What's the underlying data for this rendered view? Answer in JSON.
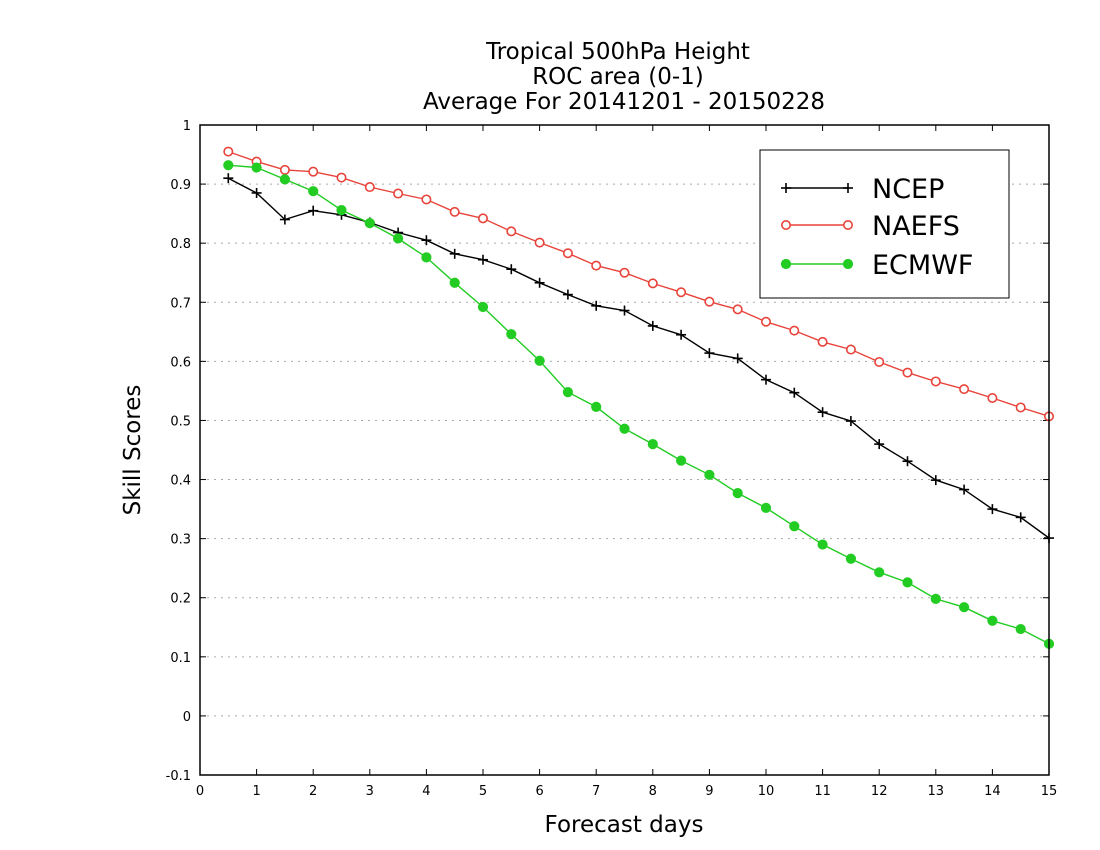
{
  "chart_data": {
    "type": "line",
    "title_lines": [
      "Tropical 500hPa Height",
      "ROC area (0-1)",
      "Average For 20141201 - 20150228"
    ],
    "xlabel": "Forecast days",
    "ylabel": "Skill Scores",
    "xlim": [
      0,
      15
    ],
    "ylim": [
      -0.1,
      1
    ],
    "x_ticks": [
      0,
      1,
      2,
      3,
      4,
      5,
      6,
      7,
      8,
      9,
      10,
      11,
      12,
      13,
      14,
      15
    ],
    "y_ticks": [
      -0.1,
      0,
      0.1,
      0.2,
      0.3,
      0.4,
      0.5,
      0.6,
      0.7,
      0.8,
      0.9,
      1
    ],
    "y_tick_labels": [
      "-0.1",
      "0",
      "0.1",
      "0.2",
      "0.3",
      "0.4",
      "0.5",
      "0.6",
      "0.7",
      "0.8",
      "0.9",
      "1"
    ],
    "grid": "horizontal dotted",
    "legend_position": "top-right",
    "x": [
      0.5,
      1,
      1.5,
      2,
      2.5,
      3,
      3.5,
      4,
      4.5,
      5,
      5.5,
      6,
      6.5,
      7,
      7.5,
      8,
      8.5,
      9,
      9.5,
      10,
      10.5,
      11,
      11.5,
      12,
      12.5,
      13,
      13.5,
      14,
      14.5,
      15
    ],
    "series": [
      {
        "name": "NCEP",
        "color": "#000000",
        "marker": "plus",
        "values": [
          0.91,
          0.885,
          0.84,
          0.855,
          0.848,
          0.835,
          0.818,
          0.805,
          0.782,
          0.772,
          0.756,
          0.733,
          0.713,
          0.694,
          0.686,
          0.66,
          0.645,
          0.614,
          0.605,
          0.569,
          0.547,
          0.514,
          0.499,
          0.46,
          0.431,
          0.399,
          0.383,
          0.35,
          0.336,
          0.301
        ]
      },
      {
        "name": "NAEFS",
        "color": "#e8433a",
        "marker": "open-circle",
        "values": [
          0.955,
          0.938,
          0.924,
          0.921,
          0.911,
          0.895,
          0.884,
          0.874,
          0.853,
          0.842,
          0.82,
          0.801,
          0.783,
          0.762,
          0.75,
          0.732,
          0.717,
          0.701,
          0.688,
          0.667,
          0.652,
          0.633,
          0.62,
          0.599,
          0.581,
          0.566,
          0.553,
          0.538,
          0.522,
          0.507
        ]
      },
      {
        "name": "ECMWF",
        "color": "#22cc22",
        "marker": "filled-circle",
        "values": [
          0.932,
          0.928,
          0.908,
          0.888,
          0.856,
          0.834,
          0.808,
          0.776,
          0.733,
          0.692,
          0.646,
          0.601,
          0.548,
          0.523,
          0.486,
          0.46,
          0.432,
          0.408,
          0.377,
          0.352,
          0.321,
          0.29,
          0.266,
          0.243,
          0.226,
          0.198,
          0.184,
          0.161,
          0.147,
          0.122
        ]
      }
    ]
  }
}
